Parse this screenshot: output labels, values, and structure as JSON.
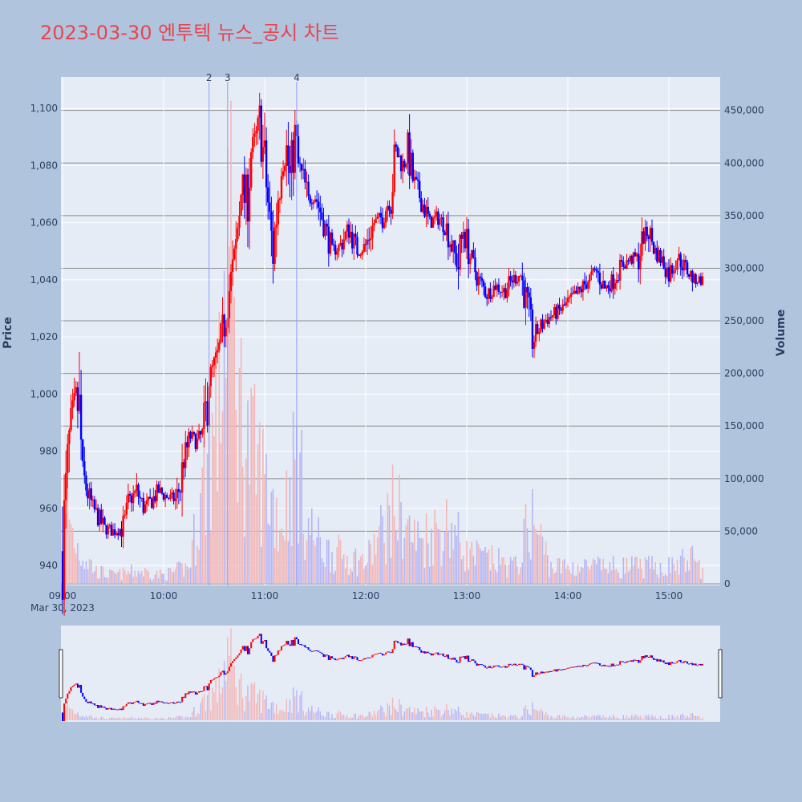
{
  "title": "2023-03-30 엔투텍 뉴스_공시 차트",
  "colors": {
    "background": "#b0c4de",
    "plot_bg": "#e5ecf6",
    "up": "#ff0000",
    "down": "#0000ff",
    "up_volume": "#f4b6b6",
    "down_volume": "#b6b6f4",
    "title": "#e8454f",
    "annotation_line": "#8c9cff"
  },
  "chart_data": {
    "type": "candlestick",
    "date_label": "Mar 30, 2023",
    "x_ticks": [
      "09:00",
      "10:00",
      "11:00",
      "12:00",
      "13:00",
      "14:00",
      "15:00"
    ],
    "y_price": {
      "label": "Price",
      "ylim": [
        933,
        1111
      ],
      "ticks": [
        "940",
        "960",
        "980",
        "1,000",
        "1,020",
        "1,040",
        "1,060",
        "1,080",
        "1,100"
      ]
    },
    "y_volume": {
      "label": "Volume",
      "ylim": [
        0,
        465000
      ],
      "ticks": [
        "0",
        "50,000",
        "100,000",
        "150,000",
        "200,000",
        "250,000",
        "300,000",
        "350,000",
        "400,000",
        "450,000"
      ]
    },
    "annotations": [
      {
        "label": "2",
        "time": "10:27"
      },
      {
        "label": "3",
        "time": "10:38"
      },
      {
        "label": "4",
        "time": "11:19"
      }
    ],
    "price_keypoints": [
      [
        "09:00",
        945
      ],
      [
        "09:02",
        965
      ],
      [
        "09:05",
        990
      ],
      [
        "09:08",
        998
      ],
      [
        "09:10",
        992
      ],
      [
        "09:12",
        972
      ],
      [
        "09:15",
        965
      ],
      [
        "09:18",
        960
      ],
      [
        "09:22",
        956
      ],
      [
        "09:25",
        953
      ],
      [
        "09:30",
        952
      ],
      [
        "09:35",
        953
      ],
      [
        "09:38",
        957
      ],
      [
        "09:40",
        963
      ],
      [
        "09:44",
        966
      ],
      [
        "09:48",
        960
      ],
      [
        "09:52",
        962
      ],
      [
        "09:57",
        966
      ],
      [
        "10:02",
        964
      ],
      [
        "10:07",
        963
      ],
      [
        "10:10",
        968
      ],
      [
        "10:12",
        977
      ],
      [
        "10:16",
        985
      ],
      [
        "10:20",
        983
      ],
      [
        "10:24",
        987
      ],
      [
        "10:27",
        1005
      ],
      [
        "10:30",
        1010
      ],
      [
        "10:33",
        1015
      ],
      [
        "10:36",
        1025
      ],
      [
        "10:38",
        1033
      ],
      [
        "10:40",
        1040
      ],
      [
        "10:43",
        1050
      ],
      [
        "10:46",
        1075
      ],
      [
        "10:49",
        1065
      ],
      [
        "10:52",
        1085
      ],
      [
        "10:55",
        1090
      ],
      [
        "10:57",
        1095
      ],
      [
        "11:00",
        1080
      ],
      [
        "11:03",
        1060
      ],
      [
        "11:05",
        1050
      ],
      [
        "11:08",
        1070
      ],
      [
        "11:10",
        1080
      ],
      [
        "11:13",
        1085
      ],
      [
        "11:15",
        1075
      ],
      [
        "11:18",
        1090
      ],
      [
        "11:20",
        1080
      ],
      [
        "11:23",
        1075
      ],
      [
        "11:26",
        1068
      ],
      [
        "11:30",
        1070
      ],
      [
        "11:35",
        1060
      ],
      [
        "11:40",
        1050
      ],
      [
        "11:45",
        1052
      ],
      [
        "11:50",
        1058
      ],
      [
        "11:55",
        1050
      ],
      [
        "12:00",
        1052
      ],
      [
        "12:05",
        1060
      ],
      [
        "12:10",
        1062
      ],
      [
        "12:15",
        1070
      ],
      [
        "12:18",
        1085
      ],
      [
        "12:22",
        1080
      ],
      [
        "12:25",
        1085
      ],
      [
        "12:28",
        1075
      ],
      [
        "12:33",
        1068
      ],
      [
        "12:38",
        1060
      ],
      [
        "12:43",
        1062
      ],
      [
        "12:48",
        1058
      ],
      [
        "12:52",
        1050
      ],
      [
        "12:55",
        1045
      ],
      [
        "12:58",
        1058
      ],
      [
        "13:02",
        1048
      ],
      [
        "13:07",
        1040
      ],
      [
        "13:12",
        1035
      ],
      [
        "13:17",
        1038
      ],
      [
        "13:22",
        1036
      ],
      [
        "13:27",
        1040
      ],
      [
        "13:32",
        1042
      ],
      [
        "13:36",
        1030
      ],
      [
        "13:39",
        1018
      ],
      [
        "13:42",
        1022
      ],
      [
        "13:47",
        1026
      ],
      [
        "13:52",
        1028
      ],
      [
        "13:57",
        1030
      ],
      [
        "14:02",
        1033
      ],
      [
        "14:07",
        1036
      ],
      [
        "14:12",
        1040
      ],
      [
        "14:17",
        1043
      ],
      [
        "14:22",
        1037
      ],
      [
        "14:27",
        1040
      ],
      [
        "14:32",
        1045
      ],
      [
        "14:37",
        1047
      ],
      [
        "14:42",
        1048
      ],
      [
        "14:45",
        1055
      ],
      [
        "14:48",
        1057
      ],
      [
        "14:52",
        1050
      ],
      [
        "14:57",
        1046
      ],
      [
        "15:00",
        1042
      ],
      [
        "15:05",
        1048
      ],
      [
        "15:10",
        1044
      ],
      [
        "15:15",
        1040
      ],
      [
        "15:20",
        1040
      ]
    ],
    "volume_keypoints": [
      [
        "09:00",
        30000
      ],
      [
        "09:03",
        90000
      ],
      [
        "09:06",
        60000
      ],
      [
        "09:10",
        40000
      ],
      [
        "09:20",
        15000
      ],
      [
        "09:30",
        10000
      ],
      [
        "09:45",
        15000
      ],
      [
        "10:00",
        10000
      ],
      [
        "10:15",
        20000
      ],
      [
        "10:27",
        150000
      ],
      [
        "10:33",
        200000
      ],
      [
        "10:38",
        440000
      ],
      [
        "10:42",
        260000
      ],
      [
        "10:48",
        170000
      ],
      [
        "10:55",
        140000
      ],
      [
        "11:00",
        120000
      ],
      [
        "11:10",
        70000
      ],
      [
        "11:19",
        150000
      ],
      [
        "11:25",
        70000
      ],
      [
        "11:35",
        40000
      ],
      [
        "12:00",
        25000
      ],
      [
        "12:17",
        90000
      ],
      [
        "12:30",
        50000
      ],
      [
        "12:50",
        70000
      ],
      [
        "13:00",
        35000
      ],
      [
        "13:30",
        20000
      ],
      [
        "13:38",
        80000
      ],
      [
        "13:50",
        20000
      ],
      [
        "14:30",
        20000
      ],
      [
        "15:00",
        20000
      ],
      [
        "15:15",
        30000
      ],
      [
        "15:20",
        15000
      ]
    ]
  }
}
